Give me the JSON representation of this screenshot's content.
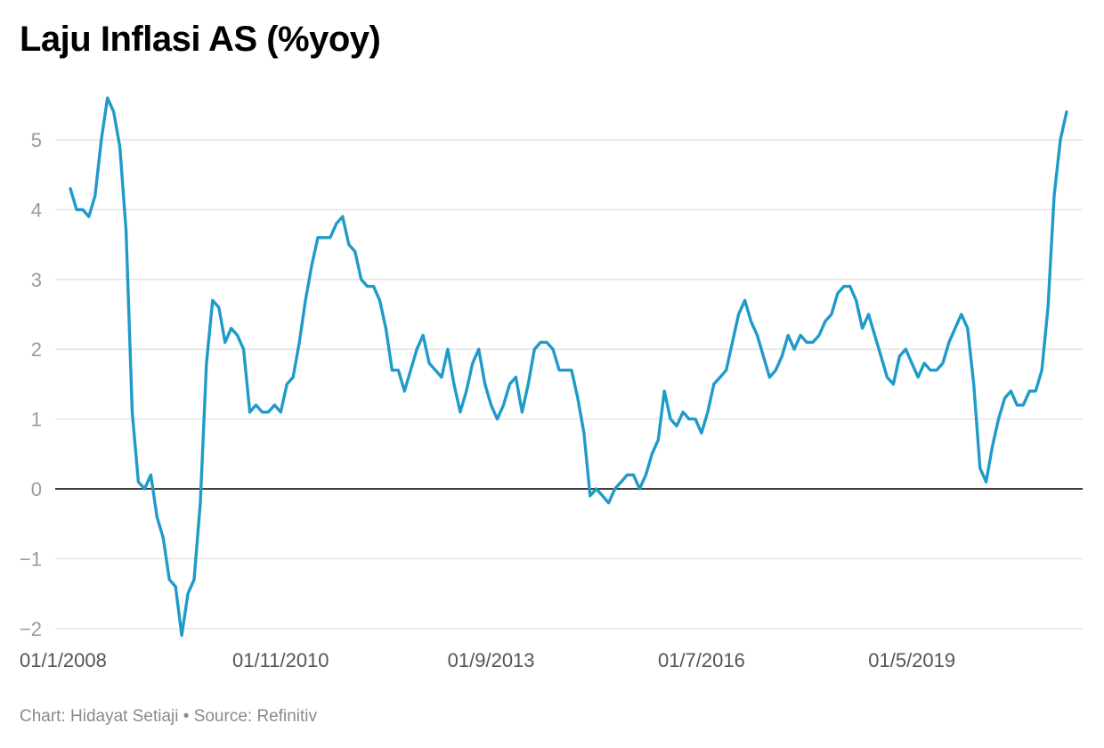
{
  "header": {
    "title": "Laju Inflasi AS (%yoy)"
  },
  "footer": {
    "credit": "Chart: Hidayat Setiaji",
    "separator": " • ",
    "source": "Source: Refinitiv"
  },
  "colors": {
    "line": "#1f9bc9",
    "grid": "#e3e3e3",
    "zero_line": "#000000",
    "tick_text": "#9a9a9a"
  },
  "chart_data": {
    "type": "line",
    "title": "Laju Inflasi AS (%yoy)",
    "xlabel": "",
    "ylabel": "",
    "ylim": [
      -2,
      5
    ],
    "yticks": [
      5,
      4,
      3,
      2,
      1,
      0,
      -1,
      -2
    ],
    "ytick_labels": [
      "5",
      "4",
      "3",
      "2",
      "1",
      "0",
      "−1",
      "−2"
    ],
    "xtick_labels": [
      "01/1/2008",
      "01/11/2010",
      "01/9/2013",
      "01/7/2016",
      "01/5/2019"
    ],
    "xtick_index": [
      0,
      34,
      68,
      102,
      136
    ],
    "grid": true,
    "x_start": "01/1/2008",
    "frequency": "monthly",
    "series": [
      {
        "values": [
          4.3,
          4.0,
          4.0,
          3.9,
          4.2,
          5.0,
          5.6,
          5.4,
          4.9,
          3.7,
          1.1,
          0.1,
          0.0,
          0.2,
          -0.4,
          -0.7,
          -1.3,
          -1.4,
          -2.1,
          -1.5,
          -1.3,
          -0.2,
          1.8,
          2.7,
          2.6,
          2.1,
          2.3,
          2.2,
          2.0,
          1.1,
          1.2,
          1.1,
          1.1,
          1.2,
          1.1,
          1.5,
          1.6,
          2.1,
          2.7,
          3.2,
          3.6,
          3.6,
          3.6,
          3.8,
          3.9,
          3.5,
          3.4,
          3.0,
          2.9,
          2.9,
          2.7,
          2.3,
          1.7,
          1.7,
          1.4,
          1.7,
          2.0,
          2.2,
          1.8,
          1.7,
          1.6,
          2.0,
          1.5,
          1.1,
          1.4,
          1.8,
          2.0,
          1.5,
          1.2,
          1.0,
          1.2,
          1.5,
          1.6,
          1.1,
          1.5,
          2.0,
          2.1,
          2.1,
          2.0,
          1.7,
          1.7,
          1.7,
          1.3,
          0.8,
          -0.1,
          0.0,
          -0.1,
          -0.2,
          0.0,
          0.1,
          0.2,
          0.2,
          0.0,
          0.2,
          0.5,
          0.7,
          1.4,
          1.0,
          0.9,
          1.1,
          1.0,
          1.0,
          0.8,
          1.1,
          1.5,
          1.6,
          1.7,
          2.1,
          2.5,
          2.7,
          2.4,
          2.2,
          1.9,
          1.6,
          1.7,
          1.9,
          2.2,
          2.0,
          2.2,
          2.1,
          2.1,
          2.2,
          2.4,
          2.5,
          2.8,
          2.9,
          2.9,
          2.7,
          2.3,
          2.5,
          2.2,
          1.9,
          1.6,
          1.5,
          1.9,
          2.0,
          1.8,
          1.6,
          1.8,
          1.7,
          1.7,
          1.8,
          2.1,
          2.3,
          2.5,
          2.3,
          1.5,
          0.3,
          0.1,
          0.6,
          1.0,
          1.3,
          1.4,
          1.2,
          1.2,
          1.4,
          1.4,
          1.7,
          2.6,
          4.2,
          5.0,
          5.4
        ]
      }
    ]
  }
}
